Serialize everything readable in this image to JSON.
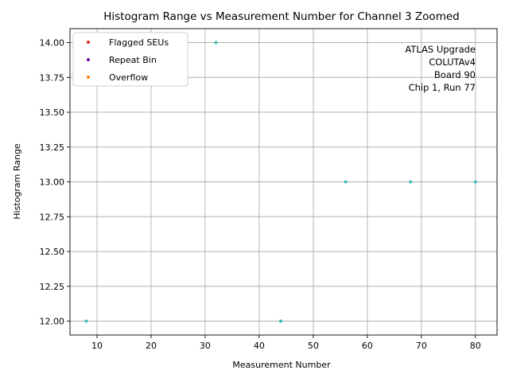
{
  "chart_data": {
    "type": "scatter",
    "title": "Histogram Range vs Measurement Number for Channel 3 Zoomed",
    "xlabel": "Measurement Number",
    "ylabel": "Histogram Range",
    "xlim": [
      5,
      84
    ],
    "ylim": [
      11.9,
      14.1
    ],
    "xticks": [
      10,
      20,
      30,
      40,
      50,
      60,
      70,
      80
    ],
    "yticks": [
      12.0,
      12.25,
      12.5,
      12.75,
      13.0,
      13.25,
      13.5,
      13.75,
      14.0
    ],
    "xtick_labels": [
      "10",
      "20",
      "30",
      "40",
      "50",
      "60",
      "70",
      "80"
    ],
    "ytick_labels": [
      "12.00",
      "12.25",
      "12.50",
      "12.75",
      "13.00",
      "13.25",
      "13.50",
      "13.75",
      "14.00"
    ],
    "grid": true,
    "legend_position": "top-left",
    "legend": [
      {
        "label": "Flagged SEUs",
        "color": "#d62728"
      },
      {
        "label": "Repeat Bin",
        "color": "#6a0dad"
      },
      {
        "label": "Overflow",
        "color": "#ff7f0e"
      }
    ],
    "series": [
      {
        "color": "#3bbfb5",
        "points": [
          {
            "x": 8,
            "y": 12.0
          },
          {
            "x": 32,
            "y": 14.0
          },
          {
            "x": 44,
            "y": 12.0
          },
          {
            "x": 56,
            "y": 13.0
          },
          {
            "x": 68,
            "y": 13.0
          },
          {
            "x": 80,
            "y": 13.0
          }
        ]
      }
    ],
    "annotation_lines": [
      "ATLAS Upgrade",
      "COLUTAv4",
      "Board 90",
      "Chip 1, Run 77"
    ]
  }
}
